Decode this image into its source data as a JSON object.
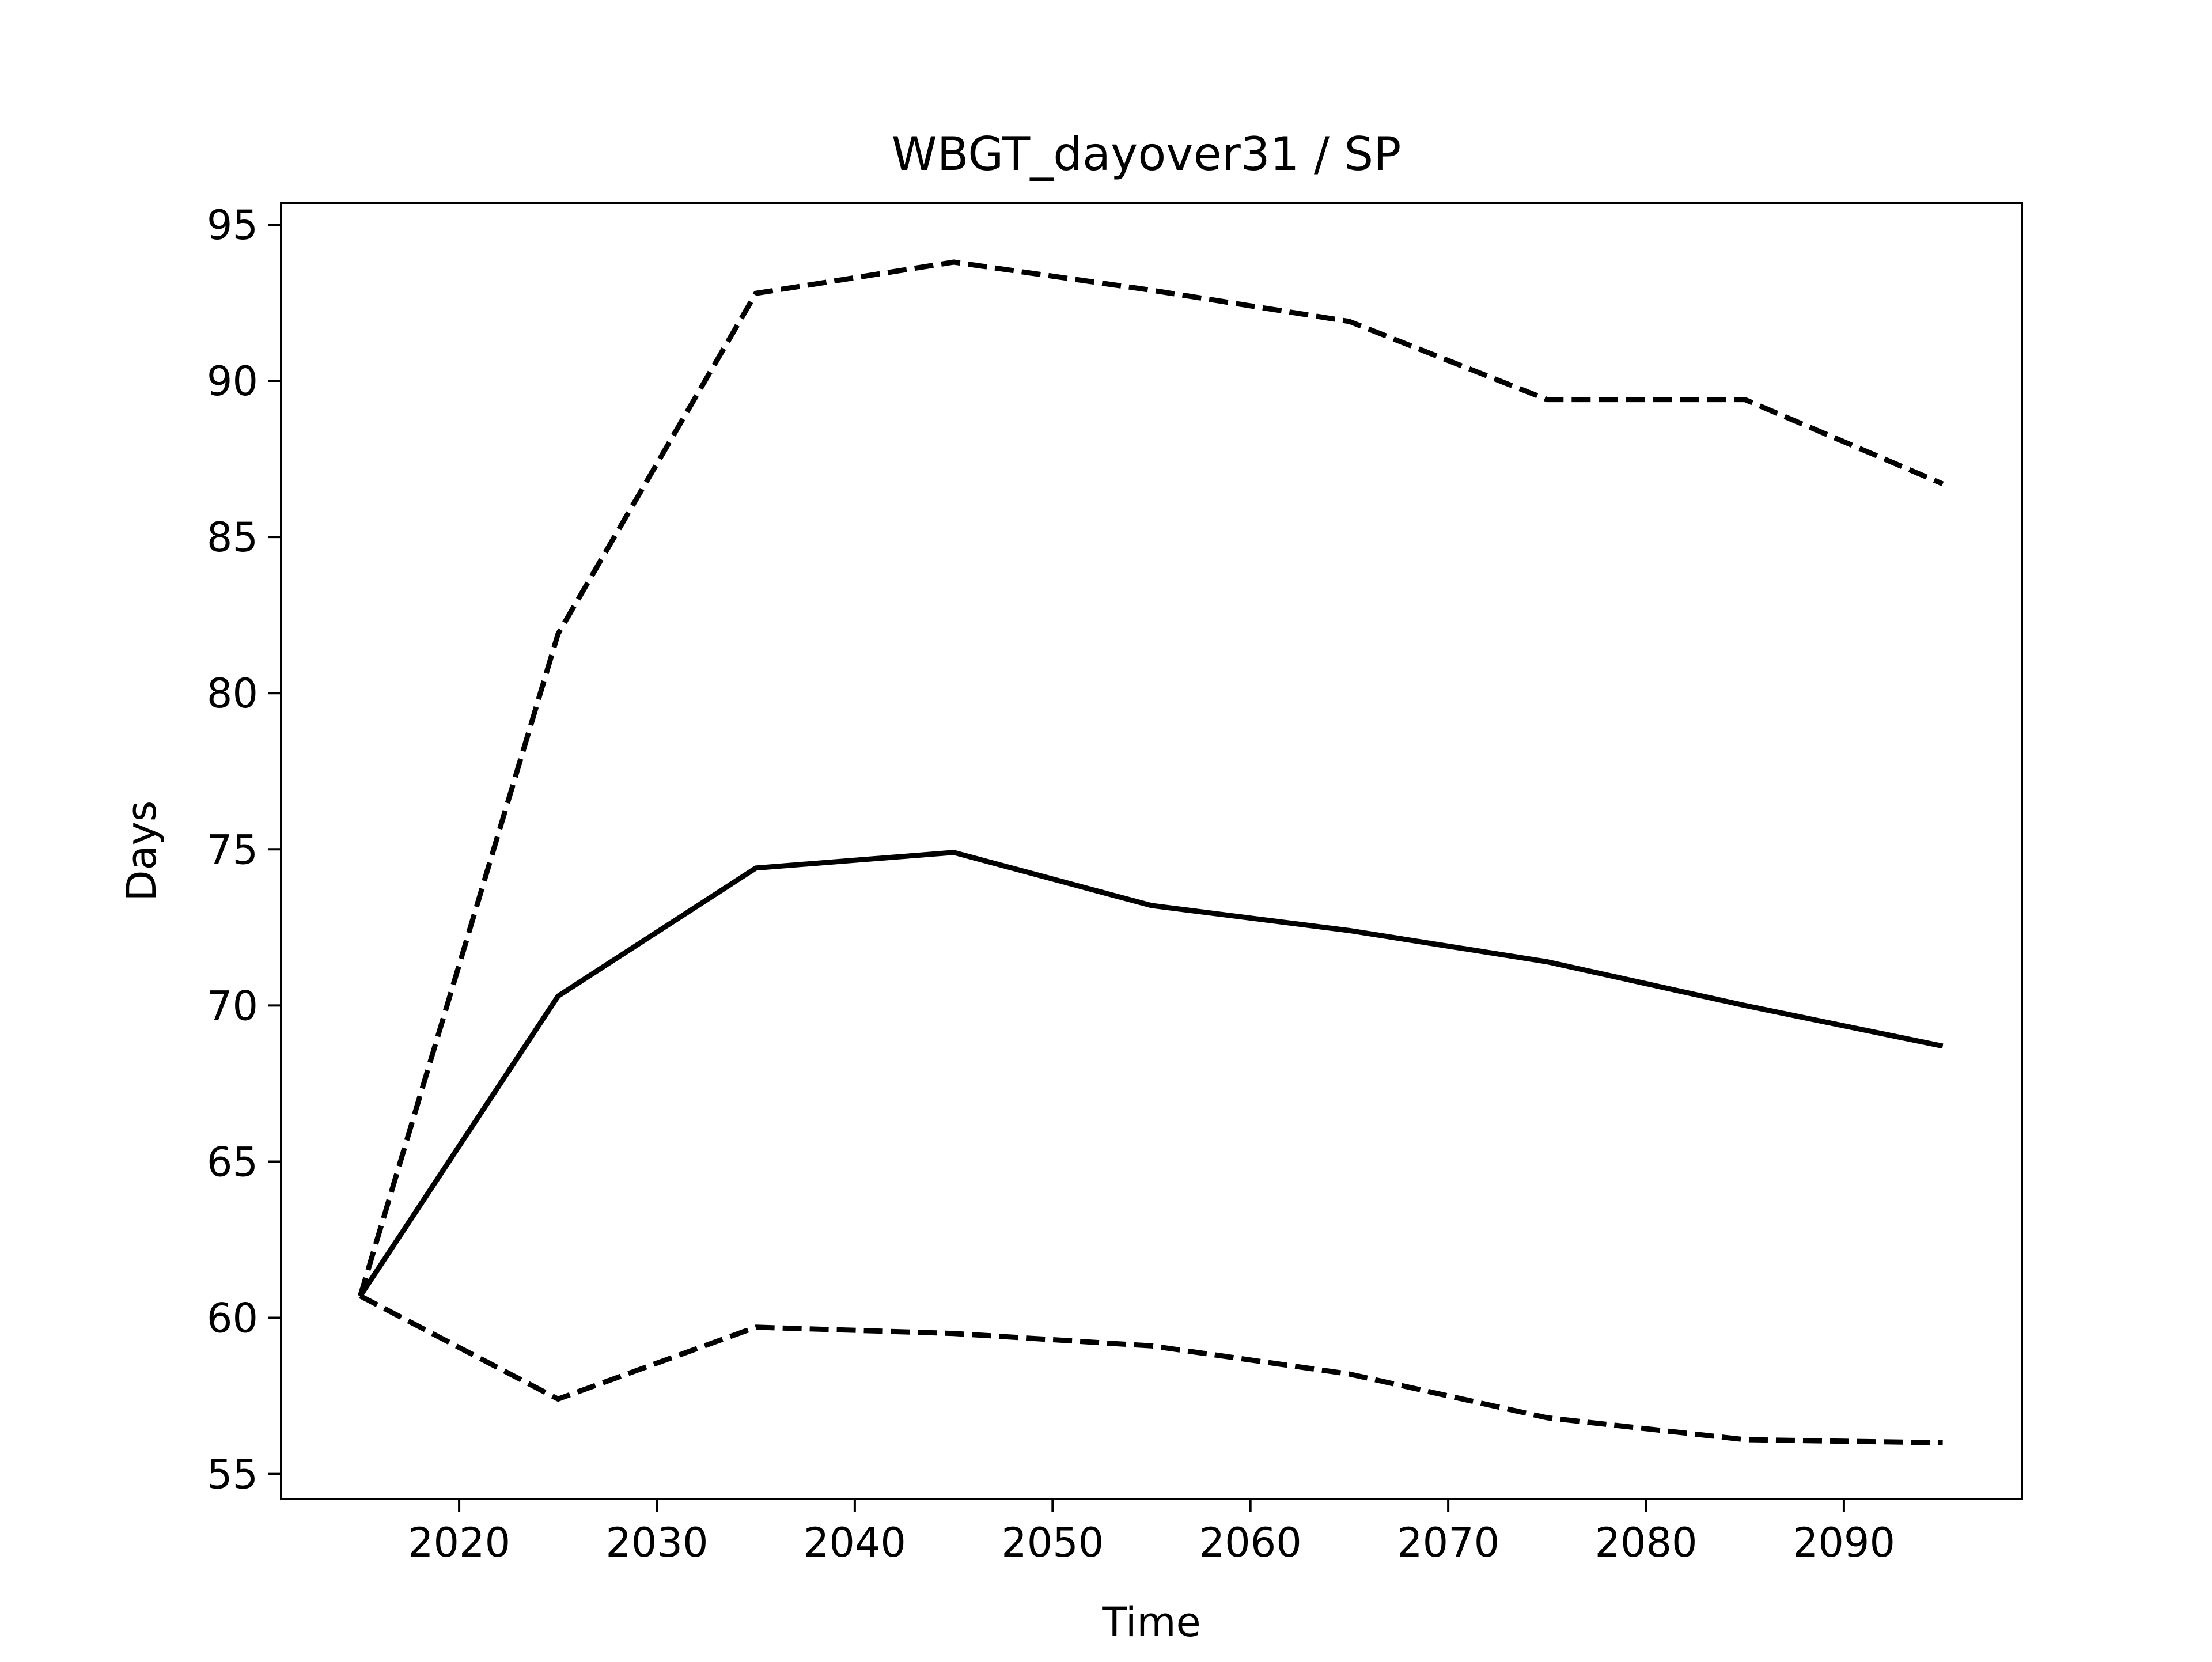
{
  "chart_data": {
    "type": "line",
    "title": "WBGT_dayover31 / SP",
    "xlabel": "Time",
    "ylabel": "Days",
    "xlim": [
      2011,
      2099
    ],
    "ylim": [
      54.2,
      95.7
    ],
    "xticks": [
      2020,
      2030,
      2040,
      2050,
      2060,
      2070,
      2080,
      2090
    ],
    "yticks": [
      55,
      60,
      65,
      70,
      75,
      80,
      85,
      90,
      95
    ],
    "grid": false,
    "legend": "none",
    "x": [
      2015,
      2025,
      2035,
      2045,
      2055,
      2065,
      2075,
      2085,
      2095
    ],
    "series": [
      {
        "style": "solid",
        "color": "#000000",
        "values": [
          60.7,
          70.3,
          74.4,
          74.9,
          73.2,
          72.4,
          71.4,
          70.0,
          68.7
        ]
      },
      {
        "style": "dashed",
        "color": "#000000",
        "values": [
          60.7,
          81.9,
          92.8,
          93.8,
          92.9,
          91.9,
          89.4,
          89.4,
          86.7
        ]
      },
      {
        "style": "dashed",
        "color": "#000000",
        "values": [
          60.7,
          57.4,
          59.7,
          59.5,
          59.1,
          58.2,
          56.8,
          56.1,
          56.0
        ]
      }
    ]
  }
}
